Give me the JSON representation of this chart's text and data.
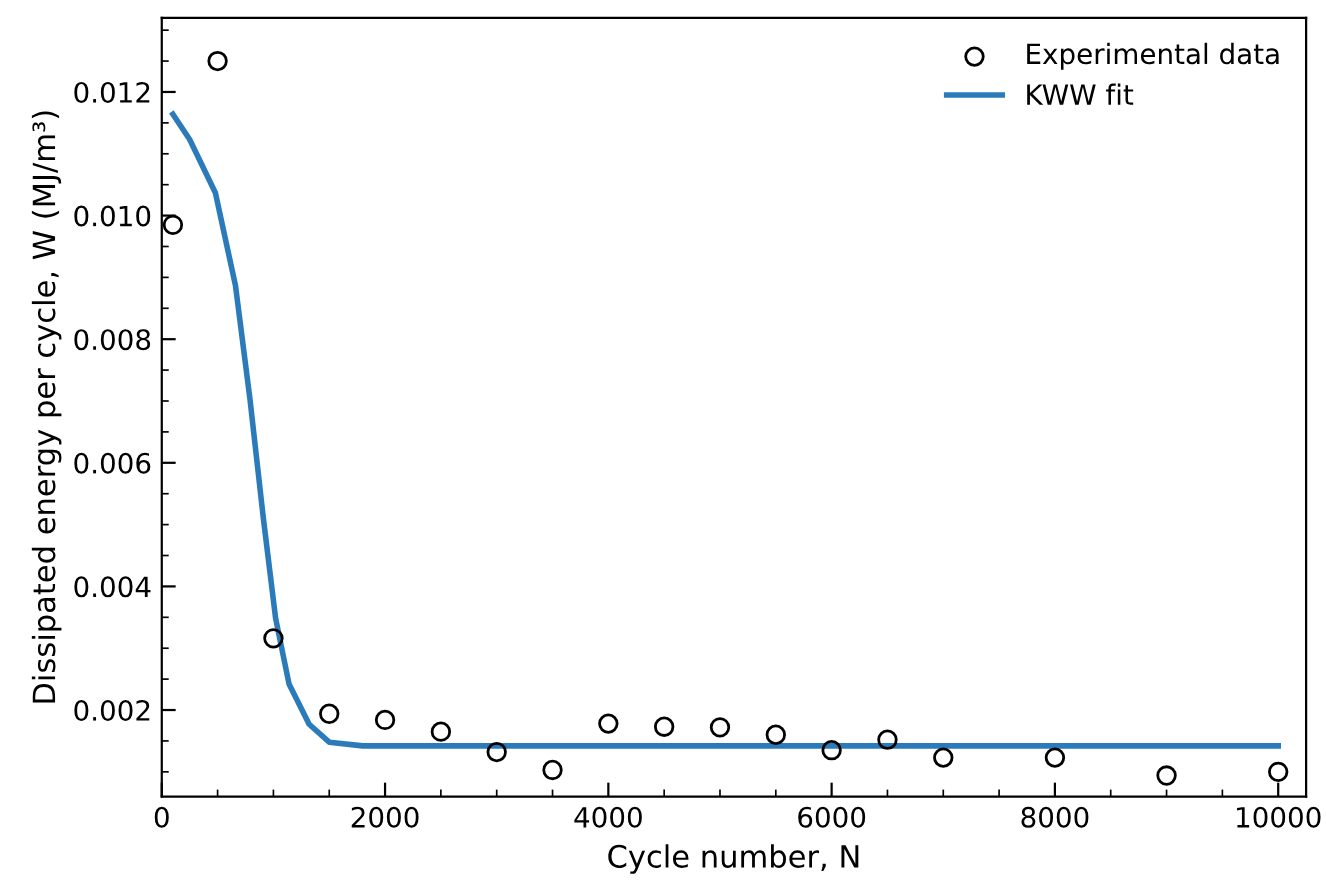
{
  "chart_data": {
    "type": "scatter",
    "xlabel": "Cycle number, N",
    "ylabel": "Dissipated energy per cycle, W (MJ/m³)",
    "xlim": [
      0,
      10250
    ],
    "ylim": [
      0.0006,
      0.0132
    ],
    "xticks": [
      0,
      2000,
      4000,
      6000,
      8000,
      10000
    ],
    "yticks": [
      0.002,
      0.004,
      0.006,
      0.008,
      {
        "value": 0.01,
        "label": "0.010"
      },
      0.012
    ],
    "legend": "top right",
    "grid": false,
    "series": [
      {
        "name": "Experimental data",
        "marker": "circle",
        "color": "#000000",
        "x": [
          100,
          500,
          1000,
          1500,
          2000,
          2500,
          3000,
          3500,
          4000,
          4500,
          5000,
          5500,
          6000,
          6500,
          7000,
          8000,
          9000,
          10000
        ],
        "values": [
          0.00985,
          0.0125,
          0.00316,
          0.00194,
          0.00184,
          0.00165,
          0.00132,
          0.00103,
          0.00178,
          0.00173,
          0.00172,
          0.0016,
          0.00135,
          0.00152,
          0.00123,
          0.00123,
          0.00094,
          0.001
        ]
      },
      {
        "name": "KWW fit",
        "type": "line",
        "marker": "none",
        "line_style": "solid",
        "color": "#2b7bba",
        "x": [
          100,
          250,
          480,
          660,
          790,
          910,
          1020,
          1140,
          1320,
          1500,
          1800,
          10000
        ],
        "values": [
          0.01164,
          0.01123,
          0.01037,
          0.00887,
          0.00703,
          0.0051,
          0.00348,
          0.00242,
          0.00177,
          0.00148,
          0.00142,
          0.00142
        ]
      }
    ]
  }
}
